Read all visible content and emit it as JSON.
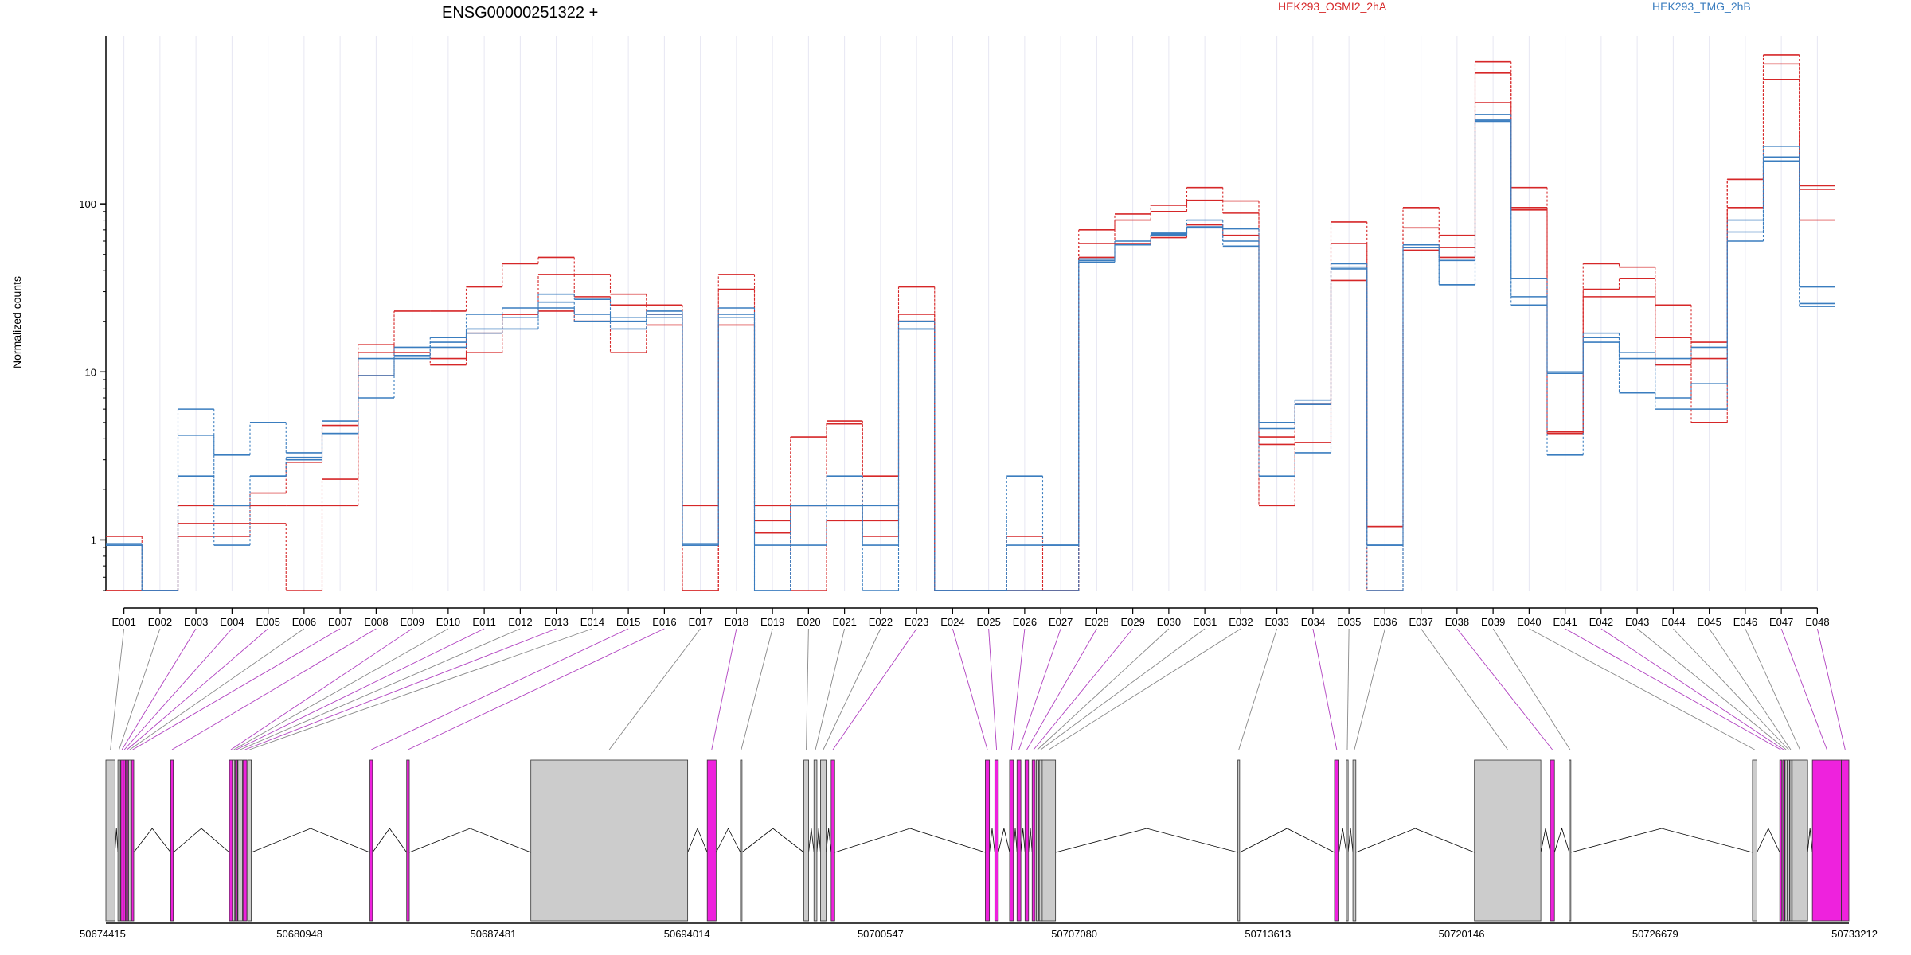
{
  "title": "ENSG00000251322 +",
  "colors": {
    "HEK293_OSMI2_2hA": "#d62728",
    "HEK293_TMG_2hB": "#3a7dbf",
    "intron": "#000000",
    "exon_default": "#cccccc",
    "exon_highlight": "#ee22dd",
    "guide_default": "#888888",
    "guide_highlight": "#b040c0",
    "grid": "#e6e6f2"
  },
  "chart_data": {
    "type": "line",
    "scale": "log",
    "ylabel": "Normalized counts",
    "ylim": [
      0.5,
      1000
    ],
    "yticks": [
      {
        "value": 1,
        "label": "1"
      },
      {
        "value": 10,
        "label": "10"
      },
      {
        "value": 100,
        "label": "100"
      }
    ],
    "categories": [
      "E001",
      "E002",
      "E003",
      "E004",
      "E005",
      "E006",
      "E007",
      "E008",
      "E009",
      "E010",
      "E011",
      "E012",
      "E013",
      "E014",
      "E015",
      "E016",
      "E017",
      "E018",
      "E019",
      "E020",
      "E021",
      "E022",
      "E023",
      "E024",
      "E025",
      "E026",
      "E027",
      "E028",
      "E029",
      "E030",
      "E031",
      "E032",
      "E033",
      "E034",
      "E035",
      "E036",
      "E037",
      "E038",
      "E039",
      "E040",
      "E041",
      "E042",
      "E043",
      "E044",
      "E045",
      "E046",
      "E047",
      "E048"
    ],
    "legend": [
      {
        "name": "HEK293_OSMI2_2hA",
        "color": "#d62728"
      },
      {
        "name": "HEK293_TMG_2hB",
        "color": "#3a7dbf"
      }
    ],
    "series": [
      {
        "group": "HEK293_OSMI2_2hA",
        "color": "#d62728",
        "values": [
          1.05,
          0.5,
          1.6,
          1.6,
          1.6,
          1.6,
          1.6,
          9.5,
          13,
          12,
          13,
          22,
          23,
          20,
          13,
          19,
          0.5,
          19,
          1.3,
          0.5,
          1.3,
          1.3,
          20,
          0.5,
          0.5,
          0.5,
          0.5,
          48,
          58,
          63,
          75,
          65,
          1.6,
          3.8,
          35,
          0.5,
          53,
          48,
          700,
          95,
          4.3,
          28,
          28,
          16,
          5,
          95,
          770,
          80
        ]
      },
      {
        "group": "HEK293_OSMI2_2hA",
        "color": "#d62728",
        "values": [
          0.5,
          0.5,
          1.25,
          1.25,
          1.25,
          0.5,
          2.3,
          13,
          23,
          23,
          32,
          44,
          48,
          38,
          29,
          25,
          0.5,
          31,
          1.6,
          4.1,
          5.1,
          2.4,
          32,
          0.5,
          0.5,
          1.05,
          0.5,
          70,
          87,
          98,
          125,
          104,
          4.1,
          6.4,
          78,
          1.2,
          95,
          65,
          600,
          125,
          4.4,
          44,
          42,
          25,
          15,
          140,
          680,
          128
        ]
      },
      {
        "group": "HEK293_OSMI2_2hA",
        "color": "#d62728",
        "values": [
          0.5,
          0.5,
          1.05,
          1.05,
          1.9,
          2.9,
          4.8,
          14.5,
          13,
          11,
          17,
          22,
          38,
          28,
          25,
          22,
          1.6,
          38,
          1.1,
          1.6,
          4.9,
          1.05,
          22,
          0.5,
          0.5,
          0.5,
          0.5,
          58,
          80,
          90,
          105,
          88,
          3.7,
          6.4,
          58,
          1.2,
          72,
          55,
          400,
          92,
          4.3,
          31,
          36,
          11,
          12,
          140,
          550,
          122
        ]
      },
      {
        "group": "HEK293_TMG_2hB",
        "color": "#3a7dbf",
        "values": [
          0.95,
          0.5,
          6,
          3.2,
          5,
          3.3,
          5.1,
          7,
          12,
          14,
          22,
          24,
          29,
          27,
          21,
          23,
          0.95,
          24,
          0.5,
          1.6,
          2.4,
          0.5,
          20,
          0.5,
          0.5,
          0.5,
          0.5,
          45,
          57,
          65,
          73,
          56,
          2.4,
          3.3,
          44,
          0.5,
          55,
          33,
          310,
          25,
          9.8,
          16,
          7.5,
          6,
          6,
          60,
          190,
          25.5
        ]
      },
      {
        "group": "HEK293_TMG_2hB",
        "color": "#3a7dbf",
        "values": [
          0.93,
          0.5,
          2.4,
          0.93,
          2.4,
          3.1,
          4.3,
          12,
          14,
          16,
          18,
          21,
          26,
          22,
          20,
          21,
          0.93,
          22,
          0.93,
          0.93,
          1.6,
          1.6,
          18,
          0.5,
          0.5,
          2.4,
          0.93,
          47,
          60,
          67,
          80,
          71,
          4.6,
          6.4,
          41,
          0.93,
          57,
          33,
          340,
          28,
          10,
          17,
          13,
          7,
          8.5,
          80,
          220,
          32
        ]
      },
      {
        "group": "HEK293_TMG_2hB",
        "color": "#3a7dbf",
        "values": [
          0.93,
          0.5,
          4.2,
          1.6,
          2.4,
          3,
          4.3,
          9.5,
          12.5,
          15,
          17,
          18,
          24,
          20,
          18,
          22,
          0.93,
          21,
          0.5,
          1.6,
          1.6,
          0.93,
          18,
          0.5,
          0.5,
          0.93,
          0.93,
          46,
          57,
          66,
          72,
          60,
          5,
          6.8,
          42,
          0.93,
          55,
          46,
          315,
          36,
          3.2,
          15,
          12,
          12,
          14,
          68,
          180,
          24.5
        ]
      }
    ]
  },
  "gene_model": {
    "genomic_axis_ticks": [
      "50674415",
      "50680948",
      "50687481",
      "50694014",
      "50700547",
      "50707080",
      "50713613",
      "50720146",
      "50726679",
      "50733212"
    ],
    "coord_min": 50674415,
    "coord_max": 50733212,
    "exons": [
      {
        "name": "E001",
        "start": 50674415,
        "end": 50674720,
        "highlight": false
      },
      {
        "name": "E002",
        "start": 50674820,
        "end": 50674900,
        "highlight": false
      },
      {
        "name": "E003",
        "start": 50674920,
        "end": 50674995,
        "highlight": true
      },
      {
        "name": "E004",
        "start": 50675000,
        "end": 50675075,
        "highlight": true
      },
      {
        "name": "E005",
        "start": 50675090,
        "end": 50675165,
        "highlight": true
      },
      {
        "name": "E006",
        "start": 50675180,
        "end": 50675255,
        "highlight": false
      },
      {
        "name": "E007",
        "start": 50675280,
        "end": 50675355,
        "highlight": true
      },
      {
        "name": "E008",
        "start": 50676600,
        "end": 50676690,
        "highlight": true
      },
      {
        "name": "E009",
        "start": 50678580,
        "end": 50678680,
        "highlight": true
      },
      {
        "name": "E010",
        "start": 50678700,
        "end": 50678760,
        "highlight": false
      },
      {
        "name": "E011",
        "start": 50678780,
        "end": 50678850,
        "highlight": true
      },
      {
        "name": "E012",
        "start": 50678870,
        "end": 50679020,
        "highlight": false
      },
      {
        "name": "E013",
        "start": 50679040,
        "end": 50679170,
        "highlight": true
      },
      {
        "name": "E014",
        "start": 50679200,
        "end": 50679320,
        "highlight": false
      },
      {
        "name": "E015",
        "start": 50683320,
        "end": 50683410,
        "highlight": true
      },
      {
        "name": "E016",
        "start": 50684560,
        "end": 50684650,
        "highlight": true
      },
      {
        "name": "E017",
        "start": 50688750,
        "end": 50694040,
        "highlight": false
      },
      {
        "name": "E018",
        "start": 50694700,
        "end": 50695000,
        "highlight": true
      },
      {
        "name": "E019",
        "start": 50695820,
        "end": 50695870,
        "highlight": false
      },
      {
        "name": "E020",
        "start": 50697960,
        "end": 50698120,
        "highlight": false
      },
      {
        "name": "E021",
        "start": 50698300,
        "end": 50698400,
        "highlight": false
      },
      {
        "name": "E022",
        "start": 50698520,
        "end": 50698710,
        "highlight": false
      },
      {
        "name": "E023",
        "start": 50698880,
        "end": 50699000,
        "highlight": true
      },
      {
        "name": "E024",
        "start": 50704080,
        "end": 50704220,
        "highlight": true
      },
      {
        "name": "E025",
        "start": 50704400,
        "end": 50704520,
        "highlight": true
      },
      {
        "name": "E026",
        "start": 50704900,
        "end": 50705030,
        "highlight": true
      },
      {
        "name": "E027",
        "start": 50705150,
        "end": 50705280,
        "highlight": true
      },
      {
        "name": "E028",
        "start": 50705420,
        "end": 50705540,
        "highlight": true
      },
      {
        "name": "E029",
        "start": 50705660,
        "end": 50705760,
        "highlight": true
      },
      {
        "name": "E030",
        "start": 50705800,
        "end": 50705880,
        "highlight": false
      },
      {
        "name": "E031",
        "start": 50705900,
        "end": 50706000,
        "highlight": false
      },
      {
        "name": "E032",
        "start": 50706000,
        "end": 50706450,
        "highlight": false
      },
      {
        "name": "E033",
        "start": 50712600,
        "end": 50712660,
        "highlight": false
      },
      {
        "name": "E034",
        "start": 50715860,
        "end": 50716010,
        "highlight": true
      },
      {
        "name": "E035",
        "start": 50716260,
        "end": 50716320,
        "highlight": false
      },
      {
        "name": "E036",
        "start": 50716480,
        "end": 50716580,
        "highlight": false
      },
      {
        "name": "E037",
        "start": 50720580,
        "end": 50722820,
        "highlight": false
      },
      {
        "name": "E038",
        "start": 50723140,
        "end": 50723280,
        "highlight": true
      },
      {
        "name": "E039",
        "start": 50723780,
        "end": 50723830,
        "highlight": false
      },
      {
        "name": "E040",
        "start": 50729960,
        "end": 50730110,
        "highlight": false
      },
      {
        "name": "E041",
        "start": 50730880,
        "end": 50730950,
        "highlight": true
      },
      {
        "name": "E042",
        "start": 50730980,
        "end": 50731040,
        "highlight": true
      },
      {
        "name": "E043",
        "start": 50731060,
        "end": 50731130,
        "highlight": false
      },
      {
        "name": "E044",
        "start": 50731150,
        "end": 50731210,
        "highlight": false
      },
      {
        "name": "E045",
        "start": 50731220,
        "end": 50731280,
        "highlight": false
      },
      {
        "name": "E046",
        "start": 50731300,
        "end": 50731820,
        "highlight": false
      },
      {
        "name": "E047",
        "start": 50731980,
        "end": 50732960,
        "highlight": true
      },
      {
        "name": "E048",
        "start": 50732960,
        "end": 50733212,
        "highlight": true
      }
    ]
  }
}
